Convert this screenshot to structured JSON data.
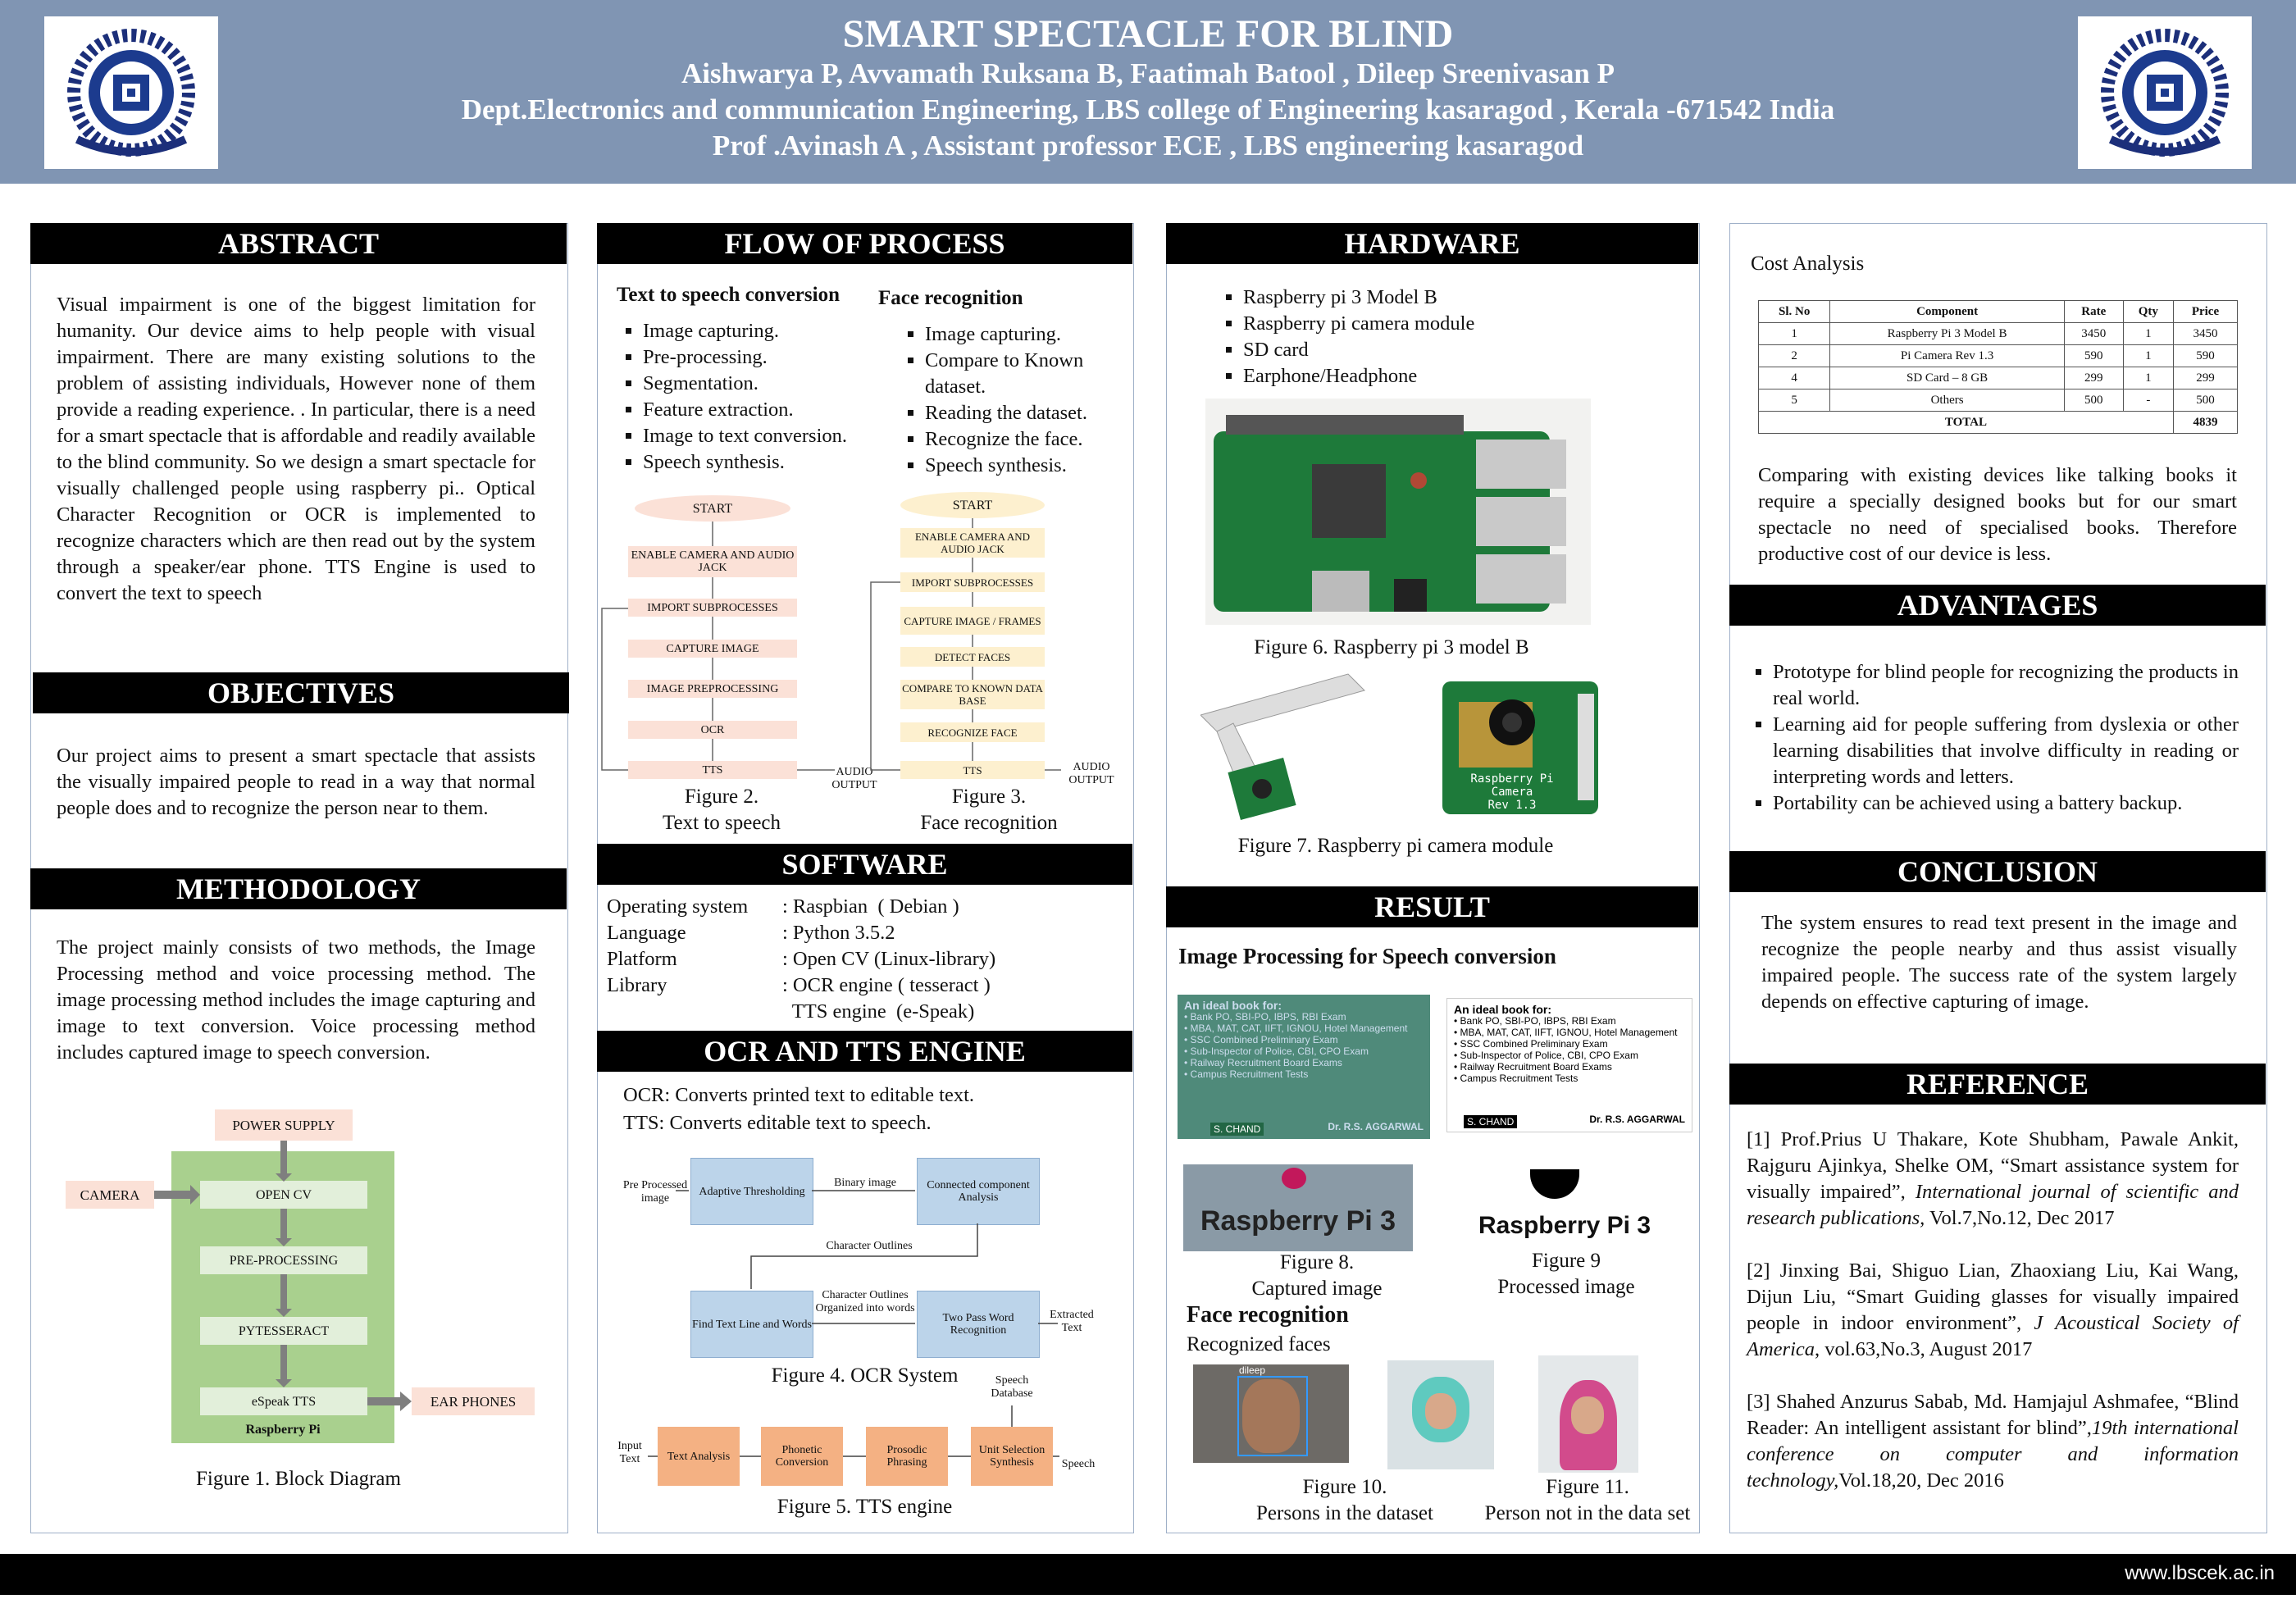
{
  "header": {
    "title": "SMART SPECTACLE FOR BLIND",
    "authors": "Aishwarya P, Avvamath Ruksana B, Faatimah Batool , Dileep Sreenivasan P",
    "dept": "Dept.Electronics and communication Engineering, LBS college of Engineering kasaragod , Kerala -671542  India",
    "guide": "Prof .Avinash A , Assistant professor ECE , LBS engineering kasaragod",
    "logo_text": "LBS COLLEGE OF ENGINEERING KASARAGOD",
    "logo_motto": "INNOVATE AND LEAP AHEAD"
  },
  "abstract": {
    "heading": "ABSTRACT",
    "text": "Visual impairment is one of the biggest limitation for humanity. Our device aims to help people with visual impairment. There are many existing solutions to the problem of assisting individuals, However none of them provide a reading experience. . In particular, there is a need for a smart spectacle that is affordable and readily available to the blind community. So we design a smart spectacle for visually challenged people using raspberry pi.. Optical Character Recognition or OCR is implemented to recognize characters which are then read out by the system through a speaker/ear phone. TTS Engine is used to convert the text to speech"
  },
  "objectives": {
    "heading": "OBJECTIVES",
    "text": "Our project aims to present a smart spectacle that assists the visually impaired people to read in a way that normal people does and to recognize the person near to them."
  },
  "methodology": {
    "heading": "METHODOLOGY",
    "text": "The project mainly consists of two methods, the Image Processing method and voice processing method. The image processing method includes the image capturing and image to text conversion. Voice processing method includes captured image to speech conversion.",
    "block": {
      "power": "POWER SUPPLY",
      "camera": "CAMERA",
      "opencv": "OPEN CV",
      "pre": "PRE-PROCESSING",
      "pyt": "PYTESSERACT",
      "espeak": "eSpeak TTS",
      "rpi": "Raspberry Pi",
      "ear": "EAR PHONES"
    },
    "caption": "Figure 1. Block Diagram"
  },
  "flow": {
    "heading": "FLOW OF PROCESS",
    "tts_title": "Text to speech conversion",
    "tts_items": [
      "Image capturing.",
      "Pre-processing.",
      "Segmentation.",
      "Feature extraction.",
      "Image to text conversion.",
      "Speech synthesis."
    ],
    "face_title": "Face recognition",
    "face_items": [
      "Image capturing.",
      "Compare to Known dataset.",
      "Reading the dataset.",
      "Recognize the face.",
      "Speech synthesis."
    ],
    "fig2_boxes": [
      "START",
      "ENABLE CAMERA AND AUDIO JACK",
      "IMPORT SUBPROCESSES",
      "CAPTURE IMAGE",
      "IMAGE PREPROCESSING",
      "OCR",
      "TTS"
    ],
    "fig2_out": "AUDIO OUTPUT",
    "fig2_caption1": "Figure 2.",
    "fig2_caption2": "Text to speech",
    "fig3_boxes": [
      "START",
      "ENABLE CAMERA  AND AUDIO JACK",
      "IMPORT SUBPROCESSES",
      "CAPTURE  IMAGE / FRAMES",
      "DETECT FACES",
      "COMPARE TO KNOWN DATA BASE",
      "RECOGNIZE FACE",
      "TTS"
    ],
    "fig3_out": "AUDIO OUTPUT",
    "fig3_caption1": "Figure 3.",
    "fig3_caption2": "Face recognition"
  },
  "software": {
    "heading": "SOFTWARE",
    "rows": [
      {
        "k": "Operating system",
        "v": ": Raspbian  ( Debian )"
      },
      {
        "k": "Language",
        "v": ": Python 3.5.2"
      },
      {
        "k": "Platform",
        "v": ": Open CV (Linux-library)"
      },
      {
        "k": "Library",
        "v": ": OCR engine ( tesseract )"
      },
      {
        "k": "",
        "v": "  TTS engine  (e-Speak)"
      }
    ]
  },
  "ocr": {
    "heading": "OCR AND TTS ENGINE",
    "line1": "OCR: Converts printed text  to editable text.",
    "line2": "TTS: Converts editable text to speech.",
    "fig4": {
      "pre": "Pre Processed image",
      "adaptive": "Adaptive Thresholding",
      "binary": "Binary image",
      "connected": "Connected component Analysis",
      "outlines": "Character Outlines",
      "findtext": "Find Text Line and Words",
      "organized": "Character Outlines Organized into words",
      "twopass": "Two Pass Word Recognition",
      "extracted": "Extracted Text"
    },
    "fig4_caption": "Figure 4. OCR System",
    "fig5": {
      "input": "Input Text",
      "text": "Text Analysis",
      "phonetic": "Phonetic Conversion",
      "prosodic": "Prosodic Phrasing",
      "unit": "Unit Selection Synthesis",
      "db": "Speech Database",
      "speech": "Speech"
    },
    "fig5_caption": "Figure 5. TTS engine"
  },
  "hardware": {
    "heading": "HARDWARE",
    "items": [
      "Raspberry pi 3 Model B",
      "Raspberry pi camera module",
      "SD card",
      "Earphone/Headphone"
    ],
    "fig6_caption": "Figure 6. Raspberry pi 3 model B",
    "fig7_caption": "Figure 7. Raspberry pi camera module",
    "cam_label1": "Raspberry Pi Camera",
    "cam_label2": "Rev 1.3"
  },
  "result": {
    "heading": "RESULT",
    "sub1": "Image Processing for Speech conversion",
    "book_lines": [
      "An ideal book for:",
      "Bank PO, SBI-PO, IBPS, RBI Exam",
      "MBA, MAT, CAT, IIFT, IGNOU, Hotel Management",
      "SSC Combined Preliminary Exam",
      "Sub-Inspector of Police, CBI, CPO Exam",
      "Railway Recruitment Board Exams",
      "Campus Recruitment Tests"
    ],
    "book_author": "Dr. R.S. AGGARWAL",
    "book_pub": "S. CHAND",
    "rpi_text": "Raspberry Pi 3",
    "fig8_caption1": "Figure 8.",
    "fig8_caption2": "Captured image",
    "fig9_caption1": "Figure 9",
    "fig9_caption2": "Processed image",
    "sub2": "Face recognition",
    "sub3": "Recognized faces",
    "face_tag": "dileep",
    "fig10_caption1": "Figure 10.",
    "fig10_caption2": "Persons in the dataset",
    "fig11_caption1": "Figure 11.",
    "fig11_caption2": "Person not in the data set"
  },
  "cost": {
    "title": "Cost Analysis",
    "headers": [
      "Sl. No",
      "Component",
      "Rate",
      "Qty",
      "Price"
    ],
    "rows": [
      [
        "1",
        "Raspberry Pi 3 Model B",
        "3450",
        "1",
        "3450"
      ],
      [
        "2",
        "Pi Camera Rev 1.3",
        "590",
        "1",
        "590"
      ],
      [
        "4",
        "SD Card – 8 GB",
        "299",
        "1",
        "299"
      ],
      [
        "5",
        "Others",
        "500",
        "-",
        "500"
      ]
    ],
    "total_label": "TOTAL",
    "total": "4839",
    "text": "Comparing with existing devices like talking books it require a specially designed books but for our smart spectacle no need of specialised books. Therefore productive cost of our device is less."
  },
  "advantages": {
    "heading": "ADVANTAGES",
    "items": [
      "Prototype for blind people for recognizing the products in real world.",
      "Learning aid for people suffering from dyslexia or other learning disabilities that involve difficulty in reading or interpreting words and letters.",
      "Portability can be achieved using a battery backup."
    ]
  },
  "conclusion": {
    "heading": "CONCLUSION",
    "text": "The system ensures to read text present in the image and recognize the people nearby and thus  assist visually impaired people. The success rate of the system largely depends on effective capturing of image."
  },
  "reference": {
    "heading": "REFERENCE",
    "refs": [
      {
        "a": "[1] Prof.Prius U Thakare, Kote Shubham, Pawale Ankit, Rajguru Ajinkya, Shelke OM, “Smart assistance system for visually impaired”, ",
        "j": "International journal of scientific and research publications,",
        "b": " Vol.7,No.12, Dec 2017"
      },
      {
        "a": "[2] Jinxing Bai, Shiguo Lian, Zhaoxiang Liu, Kai Wang, Dijun Liu, “Smart Guiding glasses for visually impaired people in indoor environment”, ",
        "j": "J Acoustical Society of America",
        "b": ", vol.63,No.3, August 2017"
      },
      {
        "a": "[3] Shahed Anzurus Sabab, Md. Hamjajul Ashmafee, “Blind Reader: An intelligent assistant for blind”,",
        "j": "19th international conference on computer and information technology,",
        "b": "Vol.18,20, Dec 2016"
      }
    ]
  },
  "footer": {
    "url": "www.lbscek.ac.in"
  }
}
